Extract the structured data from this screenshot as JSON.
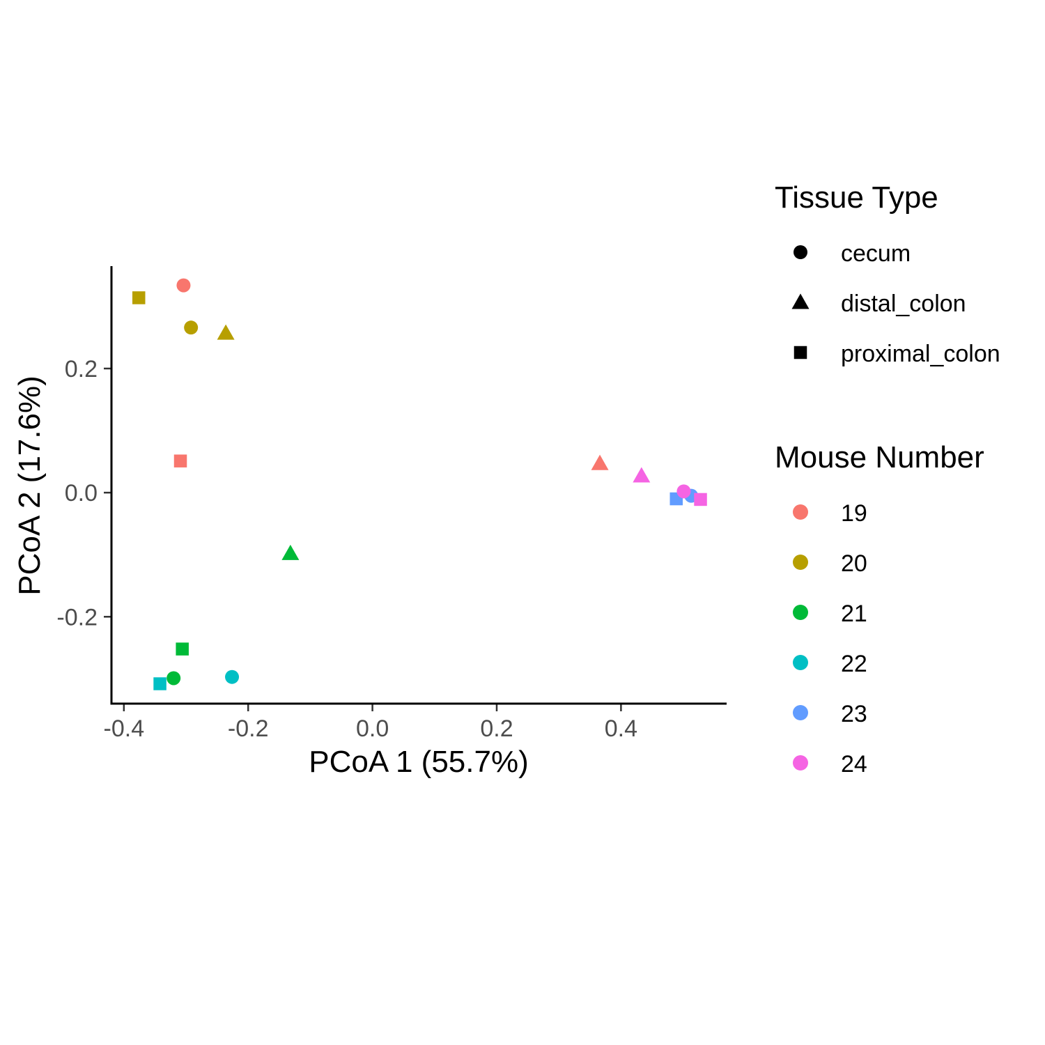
{
  "chart_data": {
    "type": "scatter",
    "title": "",
    "xlabel": "PCoA 1 (55.7%)",
    "ylabel": "PCoA 2 (17.6%)",
    "xlim": [
      -0.42,
      0.57
    ],
    "ylim": [
      -0.34,
      0.365
    ],
    "xticks": [
      -0.4,
      -0.2,
      0.0,
      0.2,
      0.4
    ],
    "xtick_labels": [
      "-0.4",
      "-0.2",
      "0.0",
      "0.2",
      "0.4"
    ],
    "yticks": [
      -0.2,
      0.0,
      0.2
    ],
    "ytick_labels": [
      "-0.2",
      "0.0",
      "0.2"
    ],
    "grid": false,
    "legend_position": "right",
    "legends": {
      "shape": {
        "title": "Tissue Type",
        "items": [
          {
            "label": "cecum",
            "shape": "circle"
          },
          {
            "label": "distal_colon",
            "shape": "triangle"
          },
          {
            "label": "proximal_colon",
            "shape": "square"
          }
        ]
      },
      "color": {
        "title": "Mouse Number",
        "items": [
          {
            "label": "19",
            "color": "#F8766D"
          },
          {
            "label": "20",
            "color": "#B79F00"
          },
          {
            "label": "21",
            "color": "#00BA38"
          },
          {
            "label": "22",
            "color": "#00BFC4"
          },
          {
            "label": "23",
            "color": "#619CFF"
          },
          {
            "label": "24",
            "color": "#F564E3"
          }
        ]
      }
    },
    "points": [
      {
        "mouse": "19",
        "tissue": "cecum",
        "x": -0.304,
        "y": 0.334
      },
      {
        "mouse": "19",
        "tissue": "distal_colon",
        "x": 0.366,
        "y": 0.047
      },
      {
        "mouse": "19",
        "tissue": "proximal_colon",
        "x": -0.309,
        "y": 0.051
      },
      {
        "mouse": "20",
        "tissue": "cecum",
        "x": -0.292,
        "y": 0.266
      },
      {
        "mouse": "20",
        "tissue": "distal_colon",
        "x": -0.236,
        "y": 0.257
      },
      {
        "mouse": "20",
        "tissue": "proximal_colon",
        "x": -0.376,
        "y": 0.314
      },
      {
        "mouse": "21",
        "tissue": "cecum",
        "x": -0.32,
        "y": -0.299
      },
      {
        "mouse": "21",
        "tissue": "distal_colon",
        "x": -0.132,
        "y": -0.098
      },
      {
        "mouse": "21",
        "tissue": "proximal_colon",
        "x": -0.306,
        "y": -0.252
      },
      {
        "mouse": "22",
        "tissue": "cecum",
        "x": -0.226,
        "y": -0.297
      },
      {
        "mouse": "22",
        "tissue": "proximal_colon",
        "x": -0.342,
        "y": -0.308
      },
      {
        "mouse": "23",
        "tissue": "cecum",
        "x": 0.513,
        "y": -0.005
      },
      {
        "mouse": "23",
        "tissue": "proximal_colon",
        "x": 0.489,
        "y": -0.01
      },
      {
        "mouse": "24",
        "tissue": "cecum",
        "x": 0.501,
        "y": 0.002
      },
      {
        "mouse": "24",
        "tissue": "distal_colon",
        "x": 0.433,
        "y": 0.027
      },
      {
        "mouse": "24",
        "tissue": "proximal_colon",
        "x": 0.528,
        "y": -0.011
      }
    ]
  }
}
